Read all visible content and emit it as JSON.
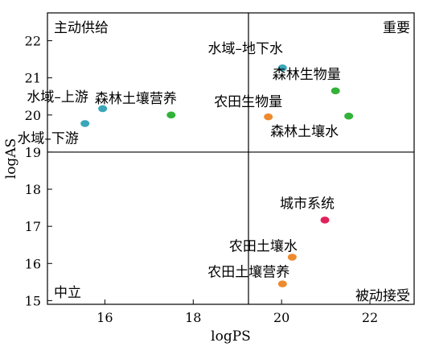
{
  "chart_data": {
    "type": "scatter",
    "xlabel": "logPS",
    "ylabel": "logAS",
    "xlim": [
      14.7,
      23.0
    ],
    "ylim": [
      14.9,
      22.75
    ],
    "xticks": [
      16,
      18,
      20,
      22
    ],
    "yticks": [
      15,
      16,
      17,
      18,
      19,
      20,
      21,
      22
    ],
    "grid": false,
    "divider": {
      "x": 19.25,
      "y": 19.0
    },
    "quadrant_labels": [
      {
        "text": "主动供给",
        "position": "top-left"
      },
      {
        "text": "重要",
        "position": "top-right"
      },
      {
        "text": "中立",
        "position": "bottom-left"
      },
      {
        "text": "被动接受",
        "position": "bottom-right"
      }
    ],
    "points": [
      {
        "label": "水域–上游",
        "x": 15.95,
        "y": 20.17,
        "color": "#3aa6b9"
      },
      {
        "label": "水域–下游",
        "x": 15.55,
        "y": 19.77,
        "color": "#3aa6b9"
      },
      {
        "label": "森林土壤营养",
        "x": 17.5,
        "y": 20.0,
        "color": "#33b23a"
      },
      {
        "label": "水域–地下水",
        "x": 20.02,
        "y": 21.27,
        "color": "#3aa6b9"
      },
      {
        "label": "森林生物量",
        "x": 21.22,
        "y": 20.65,
        "color": "#33b23a"
      },
      {
        "label": "农田生物量",
        "x": 19.7,
        "y": 19.95,
        "color": "#ee8a2e"
      },
      {
        "label": "森林土壤水",
        "x": 21.52,
        "y": 19.97,
        "color": "#33b23a"
      },
      {
        "label": "城市系统",
        "x": 20.98,
        "y": 17.17,
        "color": "#e0225c"
      },
      {
        "label": "农田土壤水",
        "x": 20.24,
        "y": 16.17,
        "color": "#ee8a2e"
      },
      {
        "label": "农田土壤营养",
        "x": 20.02,
        "y": 15.45,
        "color": "#ee8a2e"
      }
    ]
  }
}
